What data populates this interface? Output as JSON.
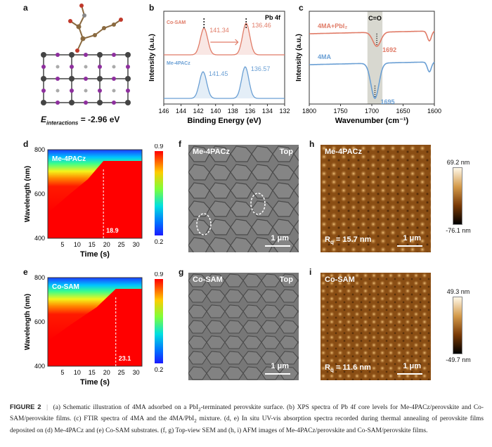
{
  "panel_labels": {
    "a": "a",
    "b": "b",
    "c": "c",
    "d": "d",
    "e": "e",
    "f": "f",
    "g": "g",
    "h": "h",
    "i": "i"
  },
  "panel_a": {
    "energy_symbol": "E",
    "energy_subscript": "interactions",
    "energy_value": " = -2.96 eV"
  },
  "chart_data": [
    {
      "panel": "b",
      "type": "line",
      "title": "Pb 4f",
      "xlabel": "Binding Energy (eV)",
      "ylabel": "Intensity (a.u.)",
      "xlim": [
        146,
        132
      ],
      "xticks": [
        "146",
        "144",
        "142",
        "140",
        "138",
        "136",
        "134",
        "132"
      ],
      "series": [
        {
          "name": "Co-SAM",
          "color": "#e07b67",
          "peaks": [
            141.34,
            136.46
          ],
          "peak_labels": [
            "141.34",
            "136.46"
          ]
        },
        {
          "name": "Me-4PACz",
          "color": "#6a9fd4",
          "peaks": [
            141.45,
            136.57
          ],
          "peak_labels": [
            "141.45",
            "136.57"
          ]
        }
      ]
    },
    {
      "panel": "c",
      "type": "line",
      "xlabel": "Wavenumber (cm⁻¹)",
      "ylabel": "Intensity (a.u.)",
      "xlim": [
        1800,
        1600
      ],
      "xticks": [
        "1800",
        "1750",
        "1700",
        "1650",
        "1600"
      ],
      "band_label": "C=O",
      "series": [
        {
          "name": "4MA+PbI₂",
          "color": "#e07b67",
          "peak": 1692,
          "peak_label": "1692"
        },
        {
          "name": "4MA",
          "color": "#6a9fd4",
          "peak": 1695,
          "peak_label": "1695"
        }
      ]
    },
    {
      "panel": "d",
      "type": "heatmap",
      "title": "Me-4PACz",
      "xlabel": "Time (s)",
      "ylabel": "Wavelength (nm)",
      "xticks": [
        "5",
        "10",
        "15",
        "20",
        "25",
        "30"
      ],
      "yticks": [
        "800",
        "600",
        "400"
      ],
      "colorbar": [
        "0.9",
        "0.2"
      ],
      "marker": 18.9,
      "marker_label": "18.9"
    },
    {
      "panel": "e",
      "type": "heatmap",
      "title": "Co-SAM",
      "xlabel": "Time (s)",
      "ylabel": "Wavelength (nm)",
      "xticks": [
        "5",
        "10",
        "15",
        "20",
        "25",
        "30"
      ],
      "yticks": [
        "800",
        "600",
        "400"
      ],
      "colorbar": [
        "0.9",
        "0.2"
      ],
      "marker": 23.1,
      "marker_label": "23.1"
    }
  ],
  "panel_f": {
    "title": "Me-4PACz",
    "view": "Top",
    "scale": "1 μm"
  },
  "panel_g": {
    "title": "Co-SAM",
    "view": "Top",
    "scale": "1 μm"
  },
  "panel_h": {
    "title": "Me-4PACz",
    "roughness_symbol": "R",
    "roughness_sub": "q",
    "roughness_value": " = 15.7 nm",
    "scale": "1 μm",
    "cb_max": "69.2 nm",
    "cb_min": "-76.1 nm"
  },
  "panel_i": {
    "title": "Co-SAM",
    "roughness_symbol": "R",
    "roughness_sub": "q",
    "roughness_value": " = 11.6 nm",
    "scale": "1 μm",
    "cb_max": "49.3 nm",
    "cb_min": "-49.7 nm"
  },
  "caption": {
    "label": "FIGURE 2",
    "separator": "|",
    "text_1": "(a) Schematic illustration of 4MA adsorbed on a PbI",
    "sub_1": "2",
    "text_2": "-terminated perovskite surface. (b) XPS spectra of Pb 4f core levels for Me-4PACz/perovskite and Co-SAM/perovskite films. (c) FTIR spectra of 4MA and the 4MA/PbI",
    "sub_2": "2",
    "text_3": " mixture. (d, e) In situ UV-vis absorption spectra recorded during thermal annealing of perovskite films deposited on (d) Me-4PACz and (e) Co-SAM substrates. (f, g) Top-view SEM and (h, i) AFM images of Me-4PACz/perovskite and Co-SAM/perovskite films."
  }
}
